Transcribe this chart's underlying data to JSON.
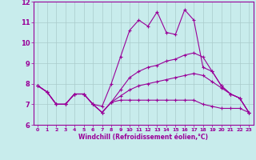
{
  "xlabel": "Windchill (Refroidissement éolien,°C)",
  "background_color": "#c8ecec",
  "line_color": "#990099",
  "grid_color": "#aacccc",
  "xlim": [
    -0.5,
    23.5
  ],
  "ylim": [
    6,
    12
  ],
  "yticks": [
    6,
    7,
    8,
    9,
    10,
    11,
    12
  ],
  "xticks": [
    0,
    1,
    2,
    3,
    4,
    5,
    6,
    7,
    8,
    9,
    10,
    11,
    12,
    13,
    14,
    15,
    16,
    17,
    18,
    19,
    20,
    21,
    22,
    23
  ],
  "xtick_labels": [
    "0",
    "1",
    "2",
    "3",
    "4",
    "5",
    "6",
    "7",
    "8",
    "9",
    "10",
    "11",
    "12",
    "13",
    "14",
    "15",
    "16",
    "17",
    "18",
    "19",
    "20",
    "21",
    "22",
    "23"
  ],
  "series": [
    [
      7.9,
      7.6,
      7.0,
      7.0,
      7.5,
      7.5,
      7.0,
      6.9,
      8.0,
      9.3,
      10.6,
      11.1,
      10.8,
      11.5,
      10.5,
      10.4,
      11.6,
      11.1,
      8.8,
      8.6,
      7.9,
      7.5,
      7.3,
      6.6
    ],
    [
      7.9,
      7.6,
      7.0,
      7.0,
      7.5,
      7.5,
      7.0,
      6.6,
      7.1,
      7.7,
      8.3,
      8.6,
      8.8,
      8.9,
      9.1,
      9.2,
      9.4,
      9.5,
      9.3,
      8.6,
      7.9,
      7.5,
      7.3,
      6.6
    ],
    [
      7.9,
      7.6,
      7.0,
      7.0,
      7.5,
      7.5,
      7.0,
      6.6,
      7.1,
      7.4,
      7.7,
      7.9,
      8.0,
      8.1,
      8.2,
      8.3,
      8.4,
      8.5,
      8.4,
      8.1,
      7.8,
      7.5,
      7.3,
      6.6
    ],
    [
      7.9,
      7.6,
      7.0,
      7.0,
      7.5,
      7.5,
      7.0,
      6.6,
      7.1,
      7.2,
      7.2,
      7.2,
      7.2,
      7.2,
      7.2,
      7.2,
      7.2,
      7.2,
      7.0,
      6.9,
      6.8,
      6.8,
      6.8,
      6.6
    ]
  ]
}
